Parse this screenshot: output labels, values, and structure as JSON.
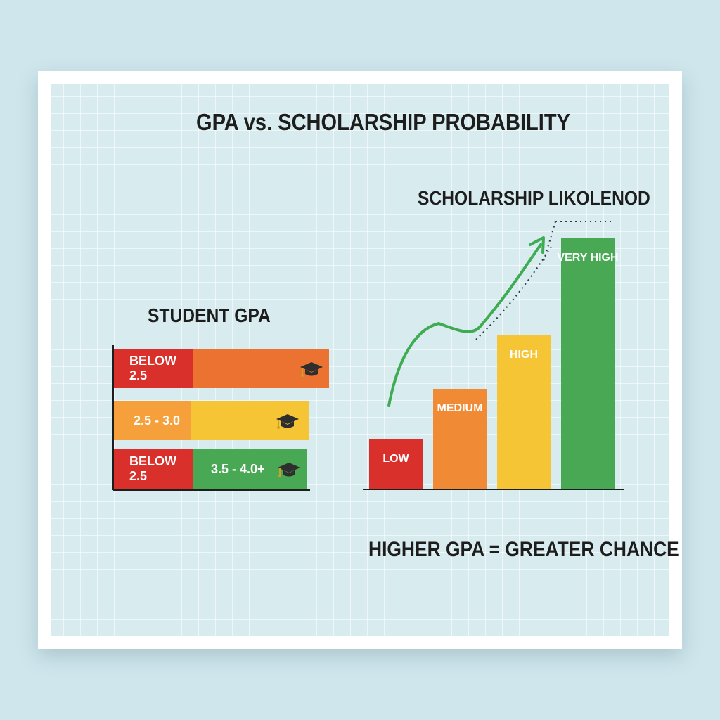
{
  "title": "GPA vs. SCHOLARSHIP PROBABILITY",
  "caption": "HIGHER GPA = GREATER CHANCE",
  "colors": {
    "red": "#d9302c",
    "orange": "#ec7231",
    "amber": "#f08a35",
    "yellow": "#f6c535",
    "green": "#48a853",
    "trend": "#3fab52",
    "background": "#d8ebef"
  },
  "chart_data": [
    {
      "type": "bar",
      "orientation": "horizontal",
      "title": "STUDENT GPA",
      "rows": [
        {
          "segments": [
            {
              "label": "BELOW 2.5",
              "color": "#d9302c"
            },
            {
              "label": "",
              "color": "#ec7231"
            }
          ],
          "icon": "graduation-cap-icon"
        },
        {
          "segments": [
            {
              "label": "2.5 - 3.0",
              "color": "#f5a03a"
            },
            {
              "label": "",
              "color": "#f6c535"
            }
          ],
          "icon": "graduation-cap-icon"
        },
        {
          "segments": [
            {
              "label": "BELOW 2.5",
              "color": "#d9302c"
            },
            {
              "label": "3.5 - 4.0+",
              "color": "#48a853"
            }
          ],
          "icon": "graduation-cap-icon"
        }
      ]
    },
    {
      "type": "bar",
      "title": "SCHOLARSHIP LIKOLENOD",
      "categories": [
        "LOW",
        "MEDIUM",
        "HIGH",
        "VERY HIGH"
      ],
      "values": [
        20,
        40,
        60,
        100
      ],
      "colors": [
        "#d9302c",
        "#f08a35",
        "#f6c535",
        "#48a853"
      ],
      "ylim": [
        0,
        100
      ],
      "trend": "upward-arrow"
    }
  ]
}
